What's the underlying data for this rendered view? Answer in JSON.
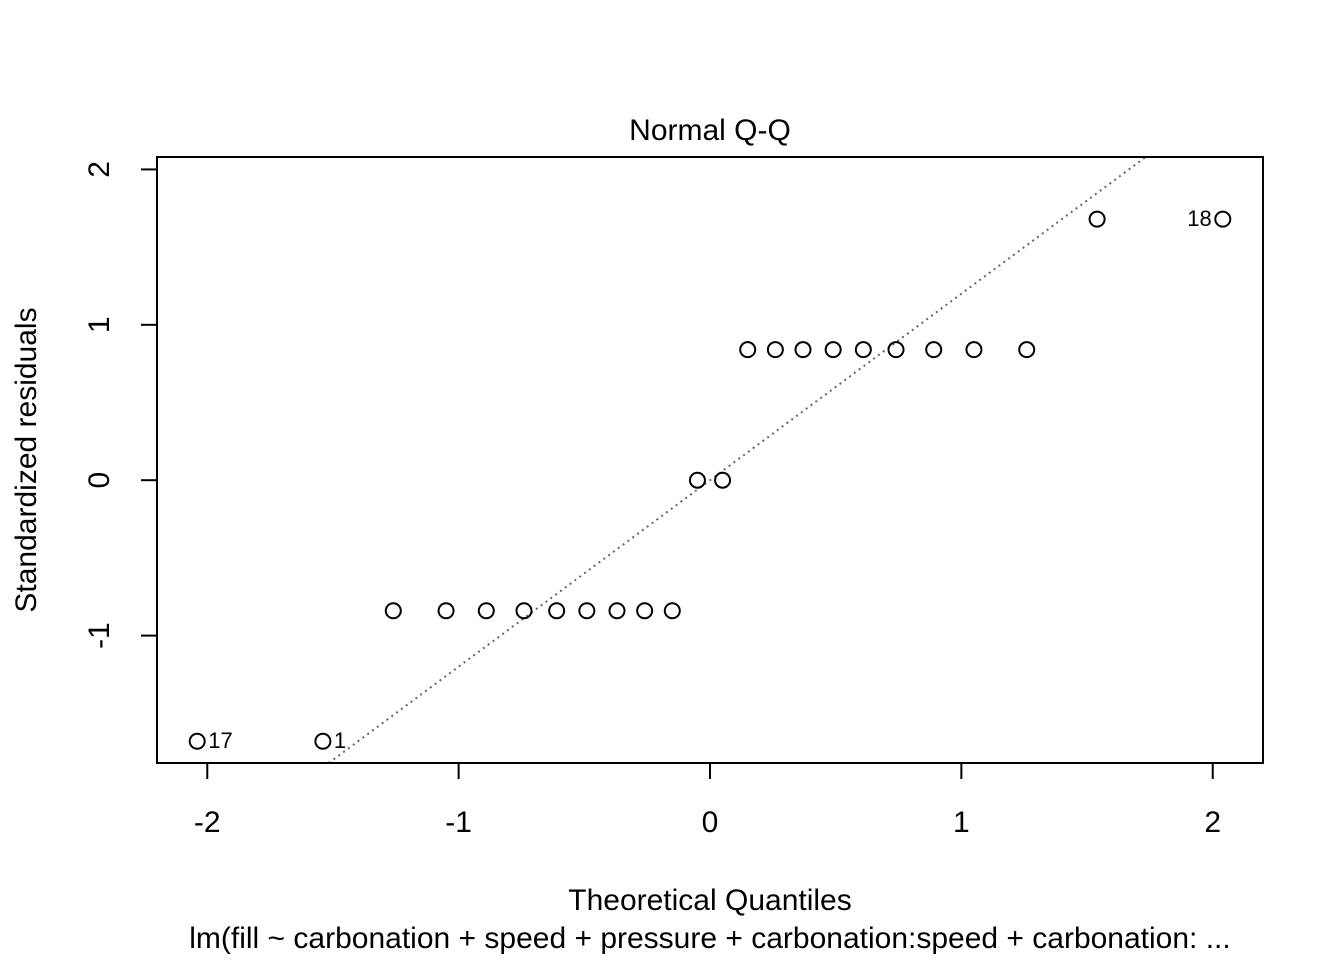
{
  "chart_data": {
    "type": "scatter",
    "title": "Normal Q-Q",
    "xlabel": "Theoretical Quantiles",
    "ylabel": "Standardized residuals",
    "caption": "lm(fill ~ carbonation + speed + pressure + carbonation:speed + carbonation: ...",
    "xlim": [
      -2.2,
      2.2
    ],
    "ylim": [
      -1.82,
      2.08
    ],
    "x_ticks": [
      {
        "value": -2,
        "label": "-2"
      },
      {
        "value": -1,
        "label": "-1"
      },
      {
        "value": 0,
        "label": "0"
      },
      {
        "value": 1,
        "label": "1"
      },
      {
        "value": 2,
        "label": "2"
      }
    ],
    "y_ticks": [
      {
        "value": -1,
        "label": "-1"
      },
      {
        "value": 0,
        "label": "0"
      },
      {
        "value": 1,
        "label": "1"
      },
      {
        "value": 2,
        "label": "2"
      }
    ],
    "reference_line": {
      "style": "dotted",
      "color": "#666666",
      "slope": 1.2,
      "intercept": 0.0
    },
    "point_style": {
      "shape": "open-circle",
      "color": "#000000"
    },
    "points": [
      {
        "x": -2.04,
        "y": -1.68,
        "label": "17"
      },
      {
        "x": -1.54,
        "y": -1.68,
        "label": "1"
      },
      {
        "x": -1.26,
        "y": -0.84
      },
      {
        "x": -1.05,
        "y": -0.84
      },
      {
        "x": -0.89,
        "y": -0.84
      },
      {
        "x": -0.74,
        "y": -0.84
      },
      {
        "x": -0.61,
        "y": -0.84
      },
      {
        "x": -0.49,
        "y": -0.84
      },
      {
        "x": -0.37,
        "y": -0.84
      },
      {
        "x": -0.26,
        "y": -0.84
      },
      {
        "x": -0.15,
        "y": -0.84
      },
      {
        "x": -0.05,
        "y": 0.0
      },
      {
        "x": 0.05,
        "y": 0.0
      },
      {
        "x": 0.15,
        "y": 0.84
      },
      {
        "x": 0.26,
        "y": 0.84
      },
      {
        "x": 0.37,
        "y": 0.84
      },
      {
        "x": 0.49,
        "y": 0.84
      },
      {
        "x": 0.61,
        "y": 0.84
      },
      {
        "x": 0.74,
        "y": 0.84
      },
      {
        "x": 0.89,
        "y": 0.84
      },
      {
        "x": 1.05,
        "y": 0.84
      },
      {
        "x": 1.26,
        "y": 0.84
      },
      {
        "x": 1.54,
        "y": 1.68
      },
      {
        "x": 2.04,
        "y": 1.68,
        "label": "18"
      }
    ]
  }
}
